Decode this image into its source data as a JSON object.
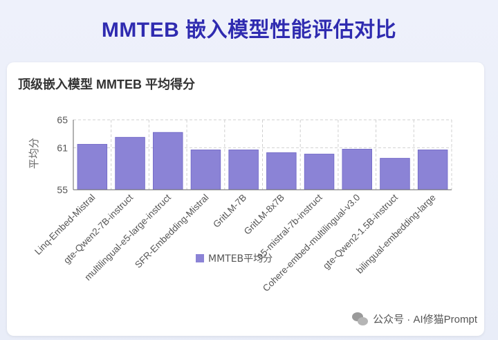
{
  "page_title": "MMTEB 嵌入模型性能评估对比",
  "card": {
    "title": "顶级嵌入模型 MMTEB 平均得分"
  },
  "watermark": {
    "text": "公众号 · AI修猫Prompt",
    "icon": "wechat-icon"
  },
  "colors": {
    "title": "#2f2bb0",
    "bar": "#8b83d6",
    "bar_stroke": "#6f66c6",
    "grid": "#d0d0d0",
    "axis": "#666666"
  },
  "chart_data": {
    "type": "bar",
    "title": "",
    "xlabel": "",
    "ylabel": "平均分",
    "ylim": [
      55,
      65
    ],
    "yticks": [
      55,
      61,
      65
    ],
    "grid": true,
    "legend_position": "bottom",
    "categories": [
      "Linq-Embed-Mistral",
      "gte-Qwen2-7B-instruct",
      "multilingual-e5-large-instruct",
      "SFR-Embedding-Mistral",
      "GritLM-7B",
      "GritLM-8x7B",
      "e5-mistral-7b-instruct",
      "Cohere-embed-multilingual-v3.0",
      "gte-Qwen2-1.5B-instruct",
      "bilingual-embedding-large"
    ],
    "series": [
      {
        "name": "MMTEB平均分",
        "values": [
          61.5,
          62.5,
          63.2,
          60.7,
          60.7,
          60.3,
          60.1,
          60.8,
          59.5,
          60.7
        ]
      }
    ]
  }
}
